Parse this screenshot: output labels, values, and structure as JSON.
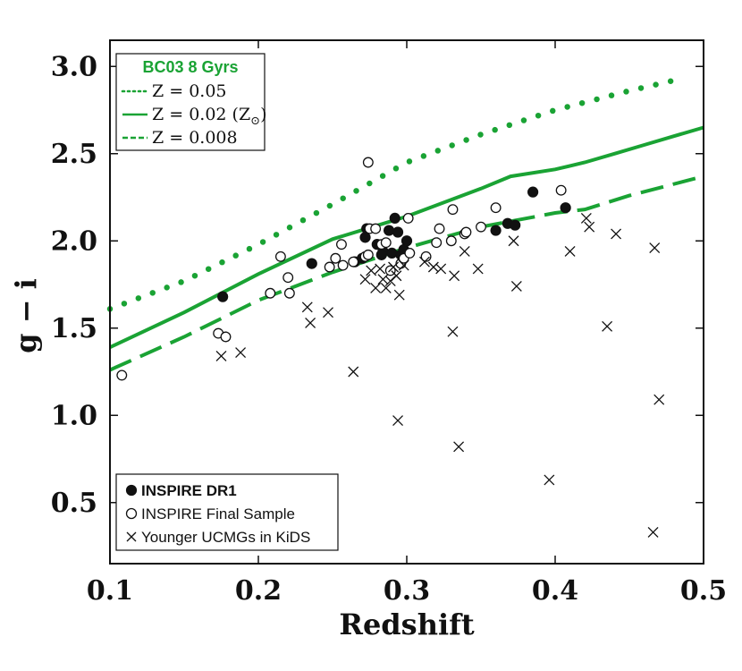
{
  "chart_data": {
    "type": "scatter",
    "title": "",
    "xlabel": "Redshift",
    "ylabel": "g − i",
    "xlim": [
      0.1,
      0.5
    ],
    "ylim": [
      0.15,
      3.15
    ],
    "x_ticks": [
      {
        "value": 0.1,
        "label": "0.1"
      },
      {
        "value": 0.2,
        "label": "0.2"
      },
      {
        "value": 0.3,
        "label": "0.3"
      },
      {
        "value": 0.4,
        "label": "0.4"
      },
      {
        "value": 0.5,
        "label": "0.5"
      }
    ],
    "y_ticks": [
      {
        "value": 0.5,
        "label": "0.5"
      },
      {
        "value": 1.0,
        "label": "1.0"
      },
      {
        "value": 1.5,
        "label": "1.5"
      },
      {
        "value": 2.0,
        "label": "2.0"
      },
      {
        "value": 2.5,
        "label": "2.5"
      },
      {
        "value": 3.0,
        "label": "3.0"
      }
    ],
    "model_legend": {
      "title": "BC03 8 Gyrs",
      "entries": [
        {
          "label": "Z = 0.05",
          "style": "dotted"
        },
        {
          "label": "Z = 0.02 (Z",
          "sub": "⊙",
          "close": ")",
          "style": "solid"
        },
        {
          "label": "Z = 0.008",
          "style": "dashed"
        }
      ]
    },
    "sample_legend": [
      {
        "label": "INSPIRE DR1",
        "marker": "filled-circle",
        "bold": true
      },
      {
        "label": "INSPIRE Final Sample",
        "marker": "open-circle",
        "bold": false
      },
      {
        "label": "Younger UCMGs in KiDS",
        "marker": "cross",
        "bold": false
      }
    ],
    "model_color": "#1aa334",
    "lines": [
      {
        "name": "Z = 0.05",
        "style": "dotted",
        "x": [
          0.1,
          0.15,
          0.2,
          0.25,
          0.3,
          0.35,
          0.4,
          0.45,
          0.48
        ],
        "y": [
          1.61,
          1.77,
          1.98,
          2.21,
          2.45,
          2.61,
          2.75,
          2.86,
          2.92
        ]
      },
      {
        "name": "Z = 0.02",
        "style": "solid",
        "x": [
          0.1,
          0.15,
          0.2,
          0.25,
          0.3,
          0.35,
          0.37,
          0.4,
          0.42,
          0.44,
          0.46,
          0.48,
          0.5
        ],
        "y": [
          1.39,
          1.59,
          1.81,
          2.01,
          2.14,
          2.3,
          2.37,
          2.41,
          2.45,
          2.5,
          2.55,
          2.6,
          2.65
        ]
      },
      {
        "name": "Z = 0.008",
        "style": "dashed",
        "x": [
          0.1,
          0.15,
          0.2,
          0.25,
          0.3,
          0.35,
          0.4,
          0.42,
          0.45,
          0.5
        ],
        "y": [
          1.26,
          1.45,
          1.66,
          1.82,
          1.96,
          2.08,
          2.16,
          2.18,
          2.26,
          2.37
        ]
      }
    ],
    "series": [
      {
        "name": "INSPIRE DR1",
        "marker": "filled-circle",
        "points": [
          [
            0.176,
            1.68
          ],
          [
            0.236,
            1.87
          ],
          [
            0.265,
            1.88
          ],
          [
            0.27,
            1.9
          ],
          [
            0.272,
            2.02
          ],
          [
            0.273,
            2.07
          ],
          [
            0.28,
            1.98
          ],
          [
            0.284,
            1.94
          ],
          [
            0.288,
            2.06
          ],
          [
            0.29,
            1.93
          ],
          [
            0.292,
            2.13
          ],
          [
            0.294,
            2.05
          ],
          [
            0.296,
            1.92
          ],
          [
            0.298,
            1.95
          ],
          [
            0.3,
            2.0
          ],
          [
            0.283,
            1.92
          ],
          [
            0.36,
            2.06
          ],
          [
            0.368,
            2.1
          ],
          [
            0.373,
            2.09
          ],
          [
            0.385,
            2.28
          ],
          [
            0.407,
            2.19
          ]
        ]
      },
      {
        "name": "INSPIRE Final Sample",
        "marker": "open-circle",
        "points": [
          [
            0.108,
            1.23
          ],
          [
            0.173,
            1.47
          ],
          [
            0.178,
            1.45
          ],
          [
            0.208,
            1.7
          ],
          [
            0.215,
            1.91
          ],
          [
            0.22,
            1.79
          ],
          [
            0.221,
            1.7
          ],
          [
            0.248,
            1.85
          ],
          [
            0.252,
            1.9
          ],
          [
            0.256,
            1.98
          ],
          [
            0.257,
            1.86
          ],
          [
            0.264,
            1.88
          ],
          [
            0.272,
            1.91
          ],
          [
            0.274,
            1.92
          ],
          [
            0.275,
            2.07
          ],
          [
            0.274,
            2.45
          ],
          [
            0.279,
            2.07
          ],
          [
            0.283,
            1.98
          ],
          [
            0.286,
            1.99
          ],
          [
            0.289,
            1.83
          ],
          [
            0.296,
            1.87
          ],
          [
            0.298,
            1.9
          ],
          [
            0.301,
            2.13
          ],
          [
            0.302,
            1.93
          ],
          [
            0.313,
            1.91
          ],
          [
            0.32,
            1.99
          ],
          [
            0.322,
            2.07
          ],
          [
            0.33,
            2.0
          ],
          [
            0.331,
            2.18
          ],
          [
            0.339,
            2.04
          ],
          [
            0.34,
            2.05
          ],
          [
            0.35,
            2.08
          ],
          [
            0.36,
            2.19
          ],
          [
            0.404,
            2.29
          ]
        ]
      },
      {
        "name": "Younger UCMGs in KiDS",
        "marker": "cross",
        "points": [
          [
            0.175,
            1.34
          ],
          [
            0.188,
            1.36
          ],
          [
            0.233,
            1.62
          ],
          [
            0.235,
            1.53
          ],
          [
            0.247,
            1.59
          ],
          [
            0.264,
            1.25
          ],
          [
            0.272,
            1.78
          ],
          [
            0.276,
            1.83
          ],
          [
            0.279,
            1.73
          ],
          [
            0.282,
            1.84
          ],
          [
            0.284,
            1.78
          ],
          [
            0.286,
            1.73
          ],
          [
            0.289,
            1.77
          ],
          [
            0.291,
            1.85
          ],
          [
            0.293,
            1.8
          ],
          [
            0.295,
            1.69
          ],
          [
            0.294,
            0.97
          ],
          [
            0.298,
            1.86
          ],
          [
            0.312,
            1.88
          ],
          [
            0.318,
            1.85
          ],
          [
            0.323,
            1.84
          ],
          [
            0.331,
            1.48
          ],
          [
            0.332,
            1.8
          ],
          [
            0.335,
            0.82
          ],
          [
            0.339,
            1.94
          ],
          [
            0.348,
            1.84
          ],
          [
            0.372,
            2.0
          ],
          [
            0.374,
            1.74
          ],
          [
            0.396,
            0.63
          ],
          [
            0.41,
            1.94
          ],
          [
            0.421,
            2.13
          ],
          [
            0.423,
            2.08
          ],
          [
            0.435,
            1.51
          ],
          [
            0.441,
            2.04
          ],
          [
            0.466,
            0.33
          ],
          [
            0.467,
            1.96
          ],
          [
            0.47,
            1.09
          ]
        ]
      }
    ]
  }
}
